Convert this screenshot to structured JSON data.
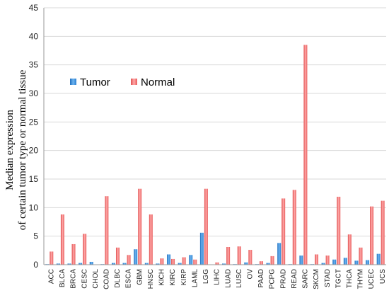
{
  "chart_data": {
    "type": "bar",
    "ylabel_line1": "Median expression",
    "ylabel_line2": "of certain tumor type or normal tissue",
    "ylim": [
      0,
      45
    ],
    "yticks": [
      "0",
      "5",
      "10",
      "15",
      "20",
      "25",
      "30",
      "35",
      "40",
      "45"
    ],
    "grid": "horizontal",
    "legend_position": "upper-left",
    "categories": [
      "ACC",
      "BLCA",
      "BRCA",
      "CESC",
      "CHOL",
      "COAD",
      "DLBC",
      "ESCA",
      "GBM",
      "HNSC",
      "KICH",
      "KIRC",
      "KIRP",
      "LAML",
      "LGG",
      "LIHC",
      "LUAD",
      "LUSC",
      "OV",
      "PAAD",
      "PCPG",
      "PRAD",
      "READ",
      "SARC",
      "SKCM",
      "STAD",
      "TGCT",
      "THCA",
      "THYM",
      "UCEC",
      "UCS"
    ],
    "series": [
      {
        "name": "Tumor",
        "color": "#3d8fd6",
        "values": [
          0.1,
          0.2,
          0.2,
          0.3,
          0.5,
          0.1,
          0.3,
          0.3,
          2.7,
          0.3,
          0.2,
          1.8,
          0.3,
          1.7,
          5.6,
          0.05,
          0.2,
          0.1,
          0.4,
          0.1,
          0.3,
          3.8,
          0.1,
          1.6,
          0.1,
          0.3,
          0.9,
          1.2,
          0.7,
          0.8,
          1.9
        ]
      },
      {
        "name": "Normal",
        "color": "#f06b6b",
        "values": [
          2.3,
          8.8,
          3.6,
          5.4,
          0.0,
          12.0,
          3.0,
          1.7,
          13.3,
          8.8,
          1.1,
          1.0,
          1.3,
          0.9,
          13.3,
          0.4,
          3.1,
          3.2,
          2.6,
          0.6,
          1.5,
          11.6,
          13.1,
          38.5,
          1.8,
          1.6,
          11.9,
          5.3,
          3.0,
          10.2,
          11.2
        ]
      }
    ]
  }
}
